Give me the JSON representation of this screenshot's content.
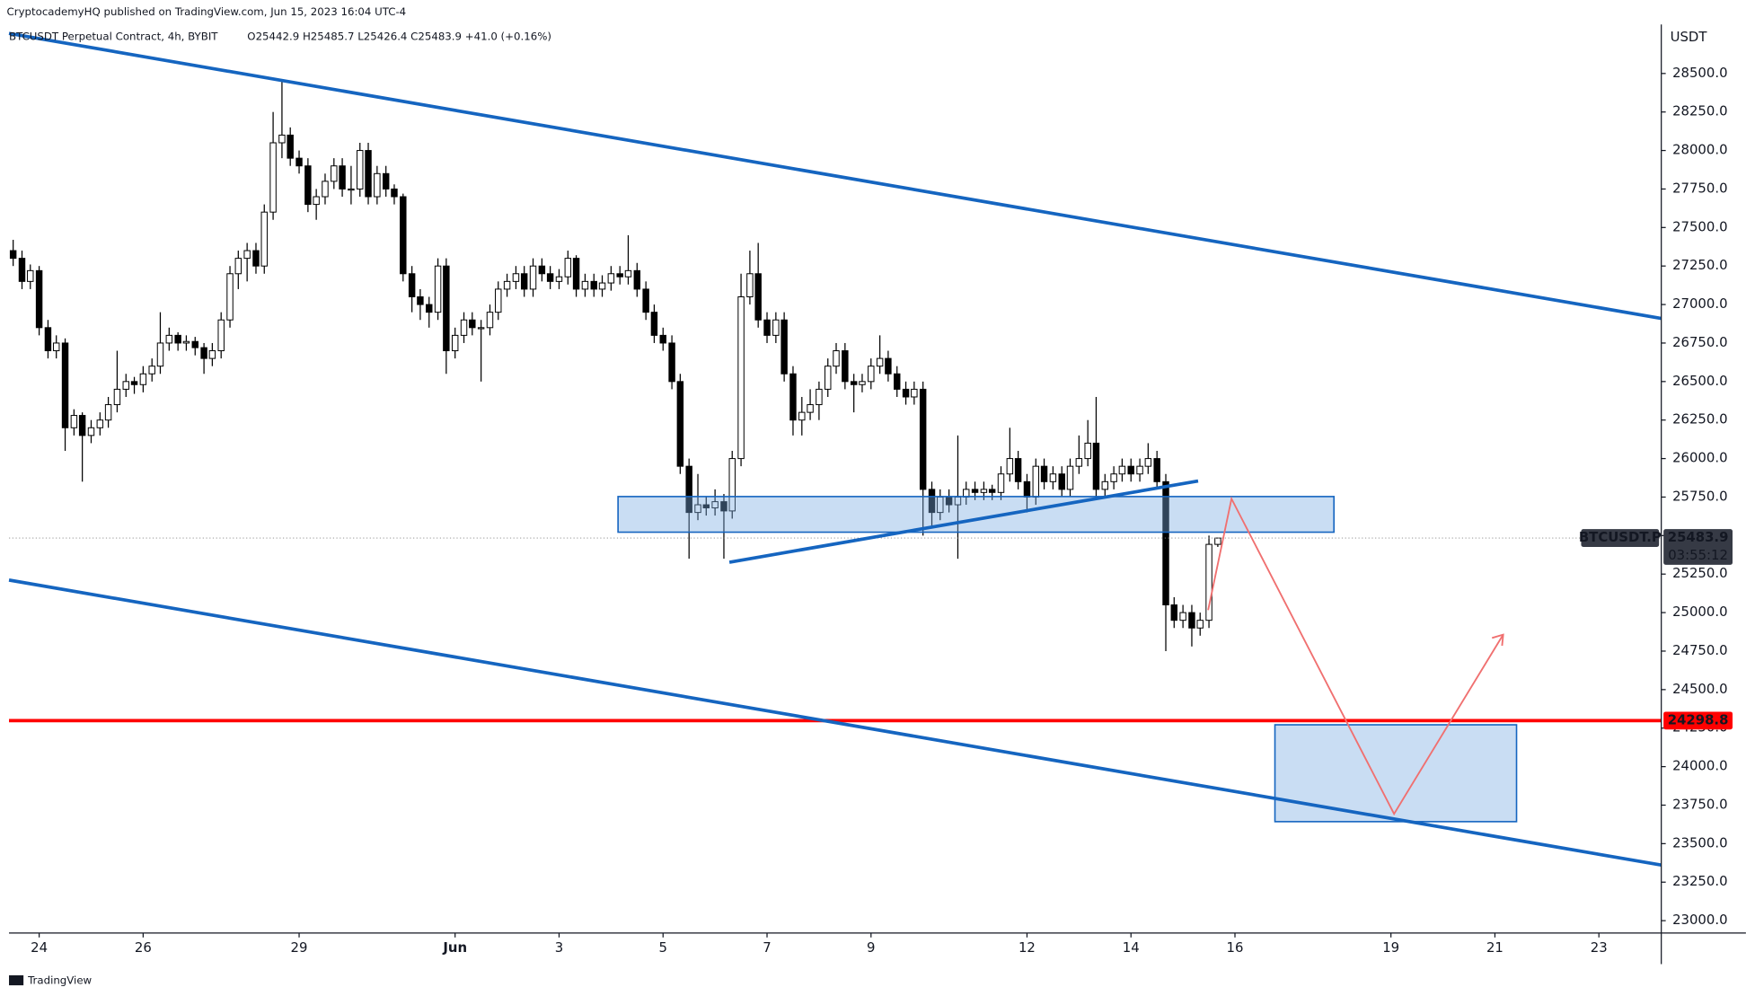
{
  "header": "CryptocademyHQ published on TradingView.com, Jun 15, 2023 16:04 UTC-4",
  "footer": "TradingView",
  "chart_data": {
    "type": "candlestick",
    "symbol_legend": "BTCUSDT Perpetual Contract, 4h, BYBIT",
    "ohlc_legend": "O25442.9 H25485.7 L25426.4 C25483.9 +41.0 (+0.16%)",
    "currency": "USDT",
    "symbol_tag": "BTCUSDT.P",
    "countdown": "03:55:12",
    "hline": 24298.8,
    "xlim": [
      -0.58,
      31.2
    ],
    "xticks": [
      {
        "value": 0,
        "label": "24"
      },
      {
        "value": 2,
        "label": "26"
      },
      {
        "value": 5,
        "label": "29"
      },
      {
        "value": 8,
        "label": "Jun"
      },
      {
        "value": 10,
        "label": "3"
      },
      {
        "value": 12,
        "label": "5"
      },
      {
        "value": 14,
        "label": "7"
      },
      {
        "value": 16,
        "label": "9"
      },
      {
        "value": 19,
        "label": "12"
      },
      {
        "value": 21,
        "label": "14"
      },
      {
        "value": 23,
        "label": "16"
      },
      {
        "value": 26,
        "label": "19"
      },
      {
        "value": 28,
        "label": "21"
      },
      {
        "value": 30,
        "label": "23"
      }
    ],
    "ylim": [
      22920,
      28818
    ],
    "yticks": [
      {
        "value": 23000,
        "label": "23000.0"
      },
      {
        "value": 23250,
        "label": "23250.0"
      },
      {
        "value": 23500,
        "label": "23500.0"
      },
      {
        "value": 23750,
        "label": "23750.0"
      },
      {
        "value": 24000,
        "label": "24000.0"
      },
      {
        "value": 24250,
        "label": "24250.0"
      },
      {
        "value": 24500,
        "label": "24500.0"
      },
      {
        "value": 24750,
        "label": "24750.0"
      },
      {
        "value": 25000,
        "label": "25000.0"
      },
      {
        "value": 25250,
        "label": "25250.0"
      },
      {
        "value": 25500,
        "label": "25500.0"
      },
      {
        "value": 25750,
        "label": "25750.0"
      },
      {
        "value": 26000,
        "label": "26000.0"
      },
      {
        "value": 26250,
        "label": "26250.0"
      },
      {
        "value": 26500,
        "label": "26500.0"
      },
      {
        "value": 26750,
        "label": "26750.0"
      },
      {
        "value": 27000,
        "label": "27000.0"
      },
      {
        "value": 27250,
        "label": "27250.0"
      },
      {
        "value": 27500,
        "label": "27500.0"
      },
      {
        "value": 27750,
        "label": "27750.0"
      },
      {
        "value": 28000,
        "label": "28000.0"
      },
      {
        "value": 28250,
        "label": "28250.0"
      },
      {
        "value": 28500,
        "label": "28500.0"
      }
    ],
    "up_color": "#ffffff",
    "down_color": "#000000",
    "hline_color": "#ff0000",
    "x": [
      -0.5,
      -0.33,
      -0.17,
      0,
      0.17,
      0.33,
      0.5,
      0.67,
      0.83,
      1,
      1.17,
      1.33,
      1.5,
      1.67,
      1.83,
      2,
      2.17,
      2.33,
      2.5,
      2.67,
      2.83,
      3,
      3.17,
      3.33,
      3.5,
      3.67,
      3.83,
      4,
      4.17,
      4.33,
      4.5,
      4.67,
      4.83,
      5,
      5.17,
      5.33,
      5.5,
      5.67,
      5.83,
      6,
      6.17,
      6.33,
      6.5,
      6.67,
      6.83,
      7,
      7.17,
      7.33,
      7.5,
      7.67,
      7.83,
      8,
      8.17,
      8.33,
      8.5,
      8.67,
      8.83,
      9,
      9.17,
      9.33,
      9.5,
      9.67,
      9.83,
      10,
      10.17,
      10.33,
      10.5,
      10.67,
      10.83,
      11,
      11.17,
      11.33,
      11.5,
      11.67,
      11.83,
      12,
      12.17,
      12.33,
      12.5,
      12.67,
      12.83,
      13,
      13.17,
      13.33,
      13.5,
      13.67,
      13.83,
      14,
      14.17,
      14.33,
      14.5,
      14.67,
      14.83,
      15,
      15.17,
      15.33,
      15.5,
      15.67,
      15.83,
      16,
      16.17,
      16.33,
      16.5,
      16.67,
      16.83,
      17,
      17.17,
      17.33,
      17.5,
      17.67,
      17.83,
      18,
      18.17,
      18.33,
      18.5,
      18.67,
      18.83,
      19,
      19.17,
      19.33,
      19.5,
      19.67,
      19.83,
      20,
      20.17,
      20.33,
      20.5,
      20.67,
      20.83,
      21,
      21.17,
      21.33,
      21.5,
      21.67,
      21.83,
      22,
      22.17,
      22.33,
      22.5,
      22.67
    ],
    "candles": [
      [
        27350,
        27420,
        27250,
        27300
      ],
      [
        27300,
        27350,
        27100,
        27150
      ],
      [
        27150,
        27260,
        27100,
        27220
      ],
      [
        27220,
        27250,
        26800,
        26850
      ],
      [
        26850,
        26900,
        26650,
        26700
      ],
      [
        26700,
        26800,
        26650,
        26750
      ],
      [
        26750,
        26780,
        26050,
        26200
      ],
      [
        26200,
        26320,
        26150,
        26280
      ],
      [
        26280,
        26300,
        25850,
        26150
      ],
      [
        26150,
        26250,
        26100,
        26200
      ],
      [
        26200,
        26300,
        26150,
        26250
      ],
      [
        26250,
        26400,
        26200,
        26350
      ],
      [
        26350,
        26700,
        26300,
        26450
      ],
      [
        26450,
        26550,
        26400,
        26500
      ],
      [
        26500,
        26530,
        26420,
        26480
      ],
      [
        26480,
        26600,
        26430,
        26550
      ],
      [
        26550,
        26650,
        26500,
        26600
      ],
      [
        26600,
        26950,
        26550,
        26750
      ],
      [
        26750,
        26850,
        26700,
        26800
      ],
      [
        26800,
        26820,
        26700,
        26750
      ],
      [
        26750,
        26800,
        26700,
        26760
      ],
      [
        26760,
        26790,
        26670,
        26720
      ],
      [
        26720,
        26750,
        26550,
        26650
      ],
      [
        26650,
        26750,
        26600,
        26700
      ],
      [
        26700,
        26950,
        26650,
        26900
      ],
      [
        26900,
        27250,
        26850,
        27200
      ],
      [
        27200,
        27350,
        27100,
        27300
      ],
      [
        27300,
        27400,
        27150,
        27350
      ],
      [
        27350,
        27400,
        27200,
        27250
      ],
      [
        27250,
        27650,
        27200,
        27600
      ],
      [
        27600,
        28250,
        27550,
        28050
      ],
      [
        28050,
        28450,
        27950,
        28100
      ],
      [
        28100,
        28150,
        27900,
        27950
      ],
      [
        27950,
        28000,
        27850,
        27900
      ],
      [
        27900,
        27950,
        27600,
        27650
      ],
      [
        27650,
        27750,
        27550,
        27700
      ],
      [
        27700,
        27850,
        27650,
        27800
      ],
      [
        27800,
        27950,
        27750,
        27900
      ],
      [
        27900,
        27950,
        27700,
        27750
      ],
      [
        27750,
        27900,
        27650,
        27750
      ],
      [
        27750,
        28050,
        27700,
        28000
      ],
      [
        28000,
        28050,
        27650,
        27700
      ],
      [
        27700,
        27900,
        27650,
        27850
      ],
      [
        27850,
        27900,
        27700,
        27750
      ],
      [
        27750,
        27780,
        27650,
        27700
      ],
      [
        27700,
        27720,
        27150,
        27200
      ],
      [
        27200,
        27250,
        26950,
        27050
      ],
      [
        27050,
        27100,
        26900,
        27000
      ],
      [
        27000,
        27050,
        26850,
        26950
      ],
      [
        26950,
        27300,
        26900,
        27250
      ],
      [
        27250,
        27300,
        26550,
        26700
      ],
      [
        26700,
        26850,
        26650,
        26800
      ],
      [
        26800,
        26950,
        26750,
        26900
      ],
      [
        26900,
        26950,
        26800,
        26850
      ],
      [
        26850,
        26900,
        26500,
        26850
      ],
      [
        26850,
        27000,
        26800,
        26950
      ],
      [
        26950,
        27150,
        26900,
        27100
      ],
      [
        27100,
        27200,
        27050,
        27150
      ],
      [
        27150,
        27250,
        27100,
        27200
      ],
      [
        27200,
        27250,
        27050,
        27100
      ],
      [
        27100,
        27300,
        27050,
        27250
      ],
      [
        27250,
        27300,
        27150,
        27200
      ],
      [
        27200,
        27250,
        27100,
        27150
      ],
      [
        27150,
        27230,
        27100,
        27180
      ],
      [
        27180,
        27350,
        27130,
        27300
      ],
      [
        27300,
        27320,
        27050,
        27100
      ],
      [
        27100,
        27200,
        27050,
        27150
      ],
      [
        27150,
        27200,
        27050,
        27100
      ],
      [
        27100,
        27190,
        27050,
        27140
      ],
      [
        27140,
        27250,
        27090,
        27200
      ],
      [
        27200,
        27250,
        27130,
        27180
      ],
      [
        27180,
        27450,
        27130,
        27220
      ],
      [
        27220,
        27270,
        27050,
        27100
      ],
      [
        27100,
        27150,
        26900,
        26950
      ],
      [
        26950,
        27000,
        26750,
        26800
      ],
      [
        26800,
        26850,
        26700,
        26750
      ],
      [
        26750,
        26800,
        26450,
        26500
      ],
      [
        26500,
        26550,
        25900,
        25950
      ],
      [
        25950,
        26000,
        25350,
        25650
      ],
      [
        25650,
        25900,
        25600,
        25700
      ],
      [
        25700,
        25750,
        25630,
        25680
      ],
      [
        25680,
        25800,
        25630,
        25720
      ],
      [
        25720,
        25770,
        25350,
        25660
      ],
      [
        25660,
        26050,
        25610,
        26000
      ],
      [
        26000,
        27200,
        25950,
        27050
      ],
      [
        27050,
        27350,
        27000,
        27200
      ],
      [
        27200,
        27400,
        26850,
        26900
      ],
      [
        26900,
        26950,
        26750,
        26800
      ],
      [
        26800,
        26950,
        26750,
        26900
      ],
      [
        26900,
        26950,
        26500,
        26550
      ],
      [
        26550,
        26600,
        26150,
        26250
      ],
      [
        26250,
        26400,
        26150,
        26300
      ],
      [
        26300,
        26450,
        26250,
        26350
      ],
      [
        26350,
        26500,
        26250,
        26450
      ],
      [
        26450,
        26650,
        26400,
        26600
      ],
      [
        26600,
        26750,
        26550,
        26700
      ],
      [
        26700,
        26750,
        26450,
        26500
      ],
      [
        26500,
        26550,
        26300,
        26480
      ],
      [
        26480,
        26550,
        26430,
        26500
      ],
      [
        26500,
        26650,
        26450,
        26600
      ],
      [
        26600,
        26800,
        26550,
        26650
      ],
      [
        26650,
        26700,
        26500,
        26550
      ],
      [
        26550,
        26600,
        26400,
        26450
      ],
      [
        26450,
        26500,
        26350,
        26400
      ],
      [
        26400,
        26500,
        26350,
        26450
      ],
      [
        26450,
        26500,
        25500,
        25800
      ],
      [
        25800,
        25850,
        25550,
        25650
      ],
      [
        25650,
        25800,
        25600,
        25750
      ],
      [
        25750,
        25800,
        25650,
        25700
      ],
      [
        25700,
        26150,
        25350,
        25750
      ],
      [
        25750,
        25850,
        25700,
        25800
      ],
      [
        25800,
        25850,
        25730,
        25780
      ],
      [
        25780,
        25850,
        25730,
        25800
      ],
      [
        25800,
        25830,
        25730,
        25780
      ],
      [
        25780,
        25950,
        25730,
        25900
      ],
      [
        25900,
        26200,
        25850,
        26000
      ],
      [
        26000,
        26050,
        25800,
        25850
      ],
      [
        25850,
        25900,
        25650,
        25750
      ],
      [
        25750,
        26000,
        25700,
        25950
      ],
      [
        25950,
        26000,
        25800,
        25850
      ],
      [
        25850,
        25950,
        25800,
        25900
      ],
      [
        25900,
        25950,
        25750,
        25800
      ],
      [
        25800,
        26000,
        25750,
        25950
      ],
      [
        25950,
        26150,
        25900,
        26000
      ],
      [
        26000,
        26250,
        25950,
        26100
      ],
      [
        26100,
        26400,
        25750,
        25800
      ],
      [
        25800,
        25900,
        25750,
        25850
      ],
      [
        25850,
        25950,
        25800,
        25900
      ],
      [
        25900,
        26000,
        25850,
        25950
      ],
      [
        25950,
        26000,
        25850,
        25900
      ],
      [
        25900,
        26000,
        25850,
        25950
      ],
      [
        25950,
        26100,
        25900,
        26000
      ],
      [
        26000,
        26050,
        25800,
        25850
      ],
      [
        25850,
        25900,
        24750,
        25050
      ],
      [
        25050,
        25100,
        24900,
        24950
      ],
      [
        24950,
        25050,
        24900,
        25000
      ],
      [
        25000,
        25050,
        24780,
        24900
      ],
      [
        24900,
        25000,
        24850,
        24950
      ],
      [
        24950,
        25500,
        24900,
        25443
      ],
      [
        25442.9,
        25485.7,
        25426.4,
        25483.9
      ]
    ]
  }
}
